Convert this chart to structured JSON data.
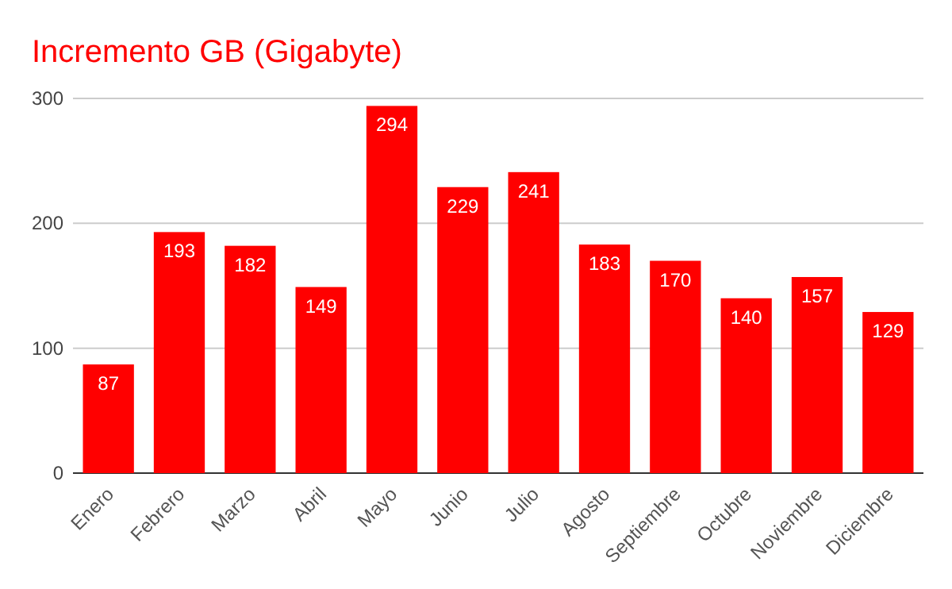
{
  "chart_data": {
    "type": "bar",
    "title": "Incremento GB (Gigabyte)",
    "categories": [
      "Enero",
      "Febrero",
      "Marzo",
      "Abril",
      "Mayo",
      "Junio",
      "Julio",
      "Agosto",
      "Septiembre",
      "Octubre",
      "Noviembre",
      "Diciembre"
    ],
    "values": [
      87,
      193,
      182,
      149,
      294,
      229,
      241,
      183,
      170,
      140,
      157,
      129
    ],
    "color": "#ff0000",
    "ylim": [
      0,
      300
    ],
    "yticks": [
      0,
      100,
      200,
      300
    ],
    "grid": "y",
    "data_labels": true
  }
}
